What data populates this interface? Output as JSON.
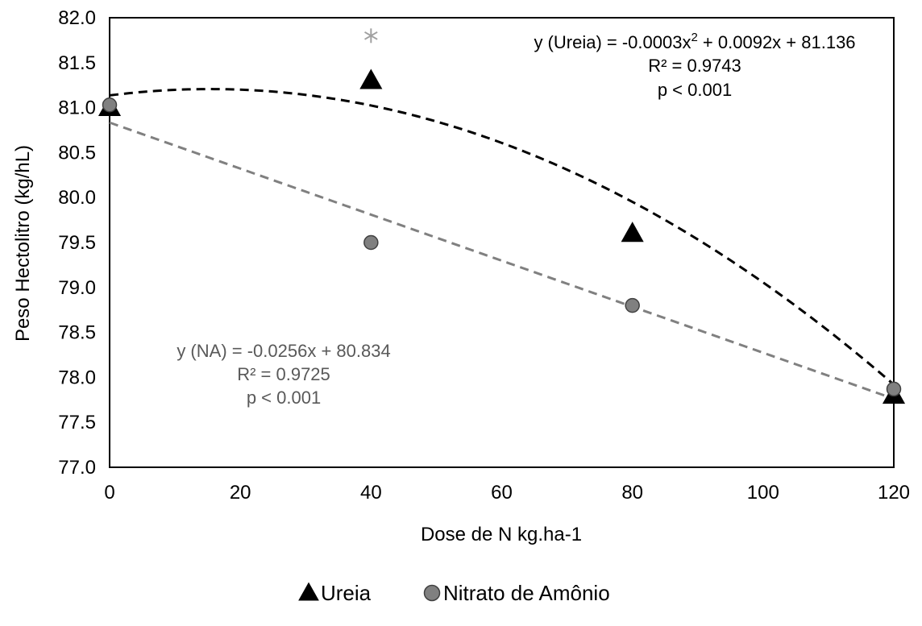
{
  "chart_data": {
    "type": "scatter",
    "xlabel": "Dose de N kg.ha-1",
    "ylabel": "Peso Hectolitro (kg/hL)",
    "xlim": [
      0,
      120
    ],
    "ylim": [
      77.0,
      82.0
    ],
    "x_ticks": [
      "0",
      "20",
      "40",
      "60",
      "80",
      "100",
      "120"
    ],
    "y_ticks": [
      "77.0",
      "77.5",
      "78.0",
      "78.5",
      "79.0",
      "79.5",
      "80.0",
      "80.5",
      "81.0",
      "81.5",
      "82.0"
    ],
    "grid": false,
    "legend_position": "bottom",
    "series": [
      {
        "name": "Ureia",
        "marker": "triangle",
        "color": "#000000",
        "x": [
          0,
          40,
          80,
          120
        ],
        "y": [
          81.0,
          81.3,
          79.6,
          77.8
        ],
        "trendline": {
          "kind": "quadratic",
          "coefficients": [
            -0.0003,
            0.0092,
            81.136
          ],
          "color": "#000000",
          "style": "dashed"
        }
      },
      {
        "name": "Nitrato de Amônio",
        "marker": "circle",
        "color": "#808080",
        "x": [
          0,
          40,
          80,
          120
        ],
        "y": [
          81.03,
          79.5,
          78.8,
          77.87
        ],
        "trendline": {
          "kind": "linear",
          "coefficients": [
            -0.0256,
            80.834
          ],
          "color": "#808080",
          "style": "dashed"
        }
      }
    ],
    "annotations": {
      "significance_marker": {
        "symbol": "*",
        "x": 40,
        "y": 81.8,
        "color": "#a0a0a0"
      },
      "ureia_equation": {
        "line1_prefix": "y (Ureia) = -0.0003x",
        "line1_sup": "2",
        "line1_suffix": " + 0.0092x + 81.136",
        "line2": "R² = 0.9743",
        "line3": "p < 0.001",
        "color": "#000000"
      },
      "na_equation": {
        "line1": "y (NA) = -0.0256x + 80.834",
        "line2": "R² = 0.9725",
        "line3": "p < 0.001",
        "color": "#595959"
      }
    }
  }
}
